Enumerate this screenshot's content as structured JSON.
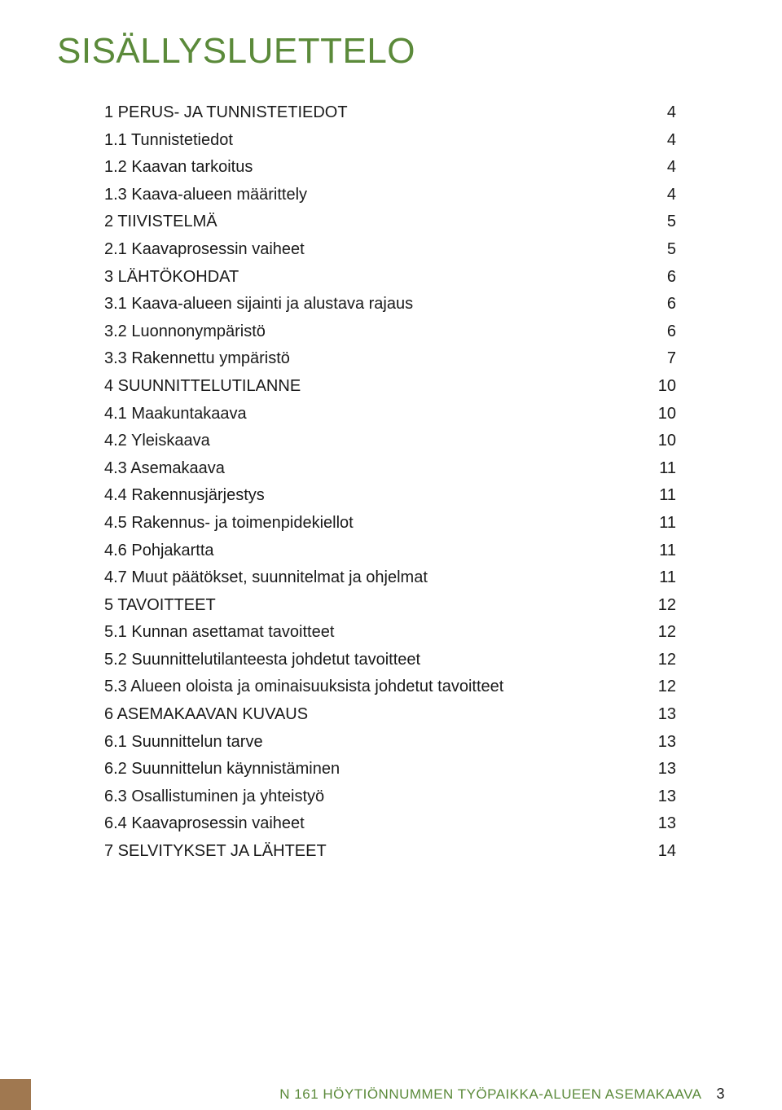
{
  "colors": {
    "title": "#5b8a3a",
    "text": "#1a1a1a",
    "footer_label": "#5b8a3a",
    "accent": "#a07850",
    "background": "#ffffff"
  },
  "title": "SISÄLLYSLUETTELO",
  "toc": [
    {
      "label": "1 PERUS- JA TUNNISTETIEDOT",
      "page": "4"
    },
    {
      "label": "1.1 Tunnistetiedot",
      "page": "4"
    },
    {
      "label": "1.2 Kaavan tarkoitus",
      "page": "4"
    },
    {
      "label": "1.3 Kaava-alueen määrittely",
      "page": "4"
    },
    {
      "label": "2 TIIVISTELMÄ",
      "page": "5"
    },
    {
      "label": "2.1 Kaavaprosessin vaiheet",
      "page": "5"
    },
    {
      "label": "3 LÄHTÖKOHDAT",
      "page": "6"
    },
    {
      "label": "3.1 Kaava-alueen sijainti ja alustava rajaus",
      "page": "6"
    },
    {
      "label": "3.2 Luonnonympäristö",
      "page": "6"
    },
    {
      "label": "3.3 Rakennettu ympäristö",
      "page": "7"
    },
    {
      "label": "4 SUUNNITTELUTILANNE",
      "page": "10"
    },
    {
      "label": "4.1 Maakuntakaava",
      "page": "10"
    },
    {
      "label": "4.2 Yleiskaava",
      "page": "10"
    },
    {
      "label": "4.3 Asemakaava",
      "page": "11"
    },
    {
      "label": "4.4 Rakennusjärjestys",
      "page": "11"
    },
    {
      "label": "4.5 Rakennus- ja toimenpidekiellot",
      "page": "11"
    },
    {
      "label": "4.6 Pohjakartta",
      "page": "11"
    },
    {
      "label": "4.7 Muut päätökset, suunnitelmat ja ohjelmat",
      "page": "11"
    },
    {
      "label": "5 TAVOITTEET",
      "page": "12"
    },
    {
      "label": "5.1 Kunnan asettamat tavoitteet",
      "page": "12"
    },
    {
      "label": "5.2 Suunnittelutilanteesta johdetut tavoitteet",
      "page": "12"
    },
    {
      "label": "5.3 Alueen oloista ja ominaisuuksista johdetut tavoitteet",
      "page": "12"
    },
    {
      "label": "6 ASEMAKAAVAN KUVAUS",
      "page": "13"
    },
    {
      "label": "6.1 Suunnittelun tarve",
      "page": "13"
    },
    {
      "label": "6.2 Suunnittelun käynnistäminen",
      "page": "13"
    },
    {
      "label": "6.3 Osallistuminen ja yhteistyö",
      "page": "13"
    },
    {
      "label": "6.4 Kaavaprosessin vaiheet",
      "page": "13"
    },
    {
      "label": "7 SELVITYKSET JA LÄHTEET",
      "page": "14"
    }
  ],
  "footer": {
    "label": "N 161 HÖYTIÖNNUMMEN TYÖPAIKKA-ALUEEN ASEMAKAAVA",
    "page_number": "3"
  }
}
